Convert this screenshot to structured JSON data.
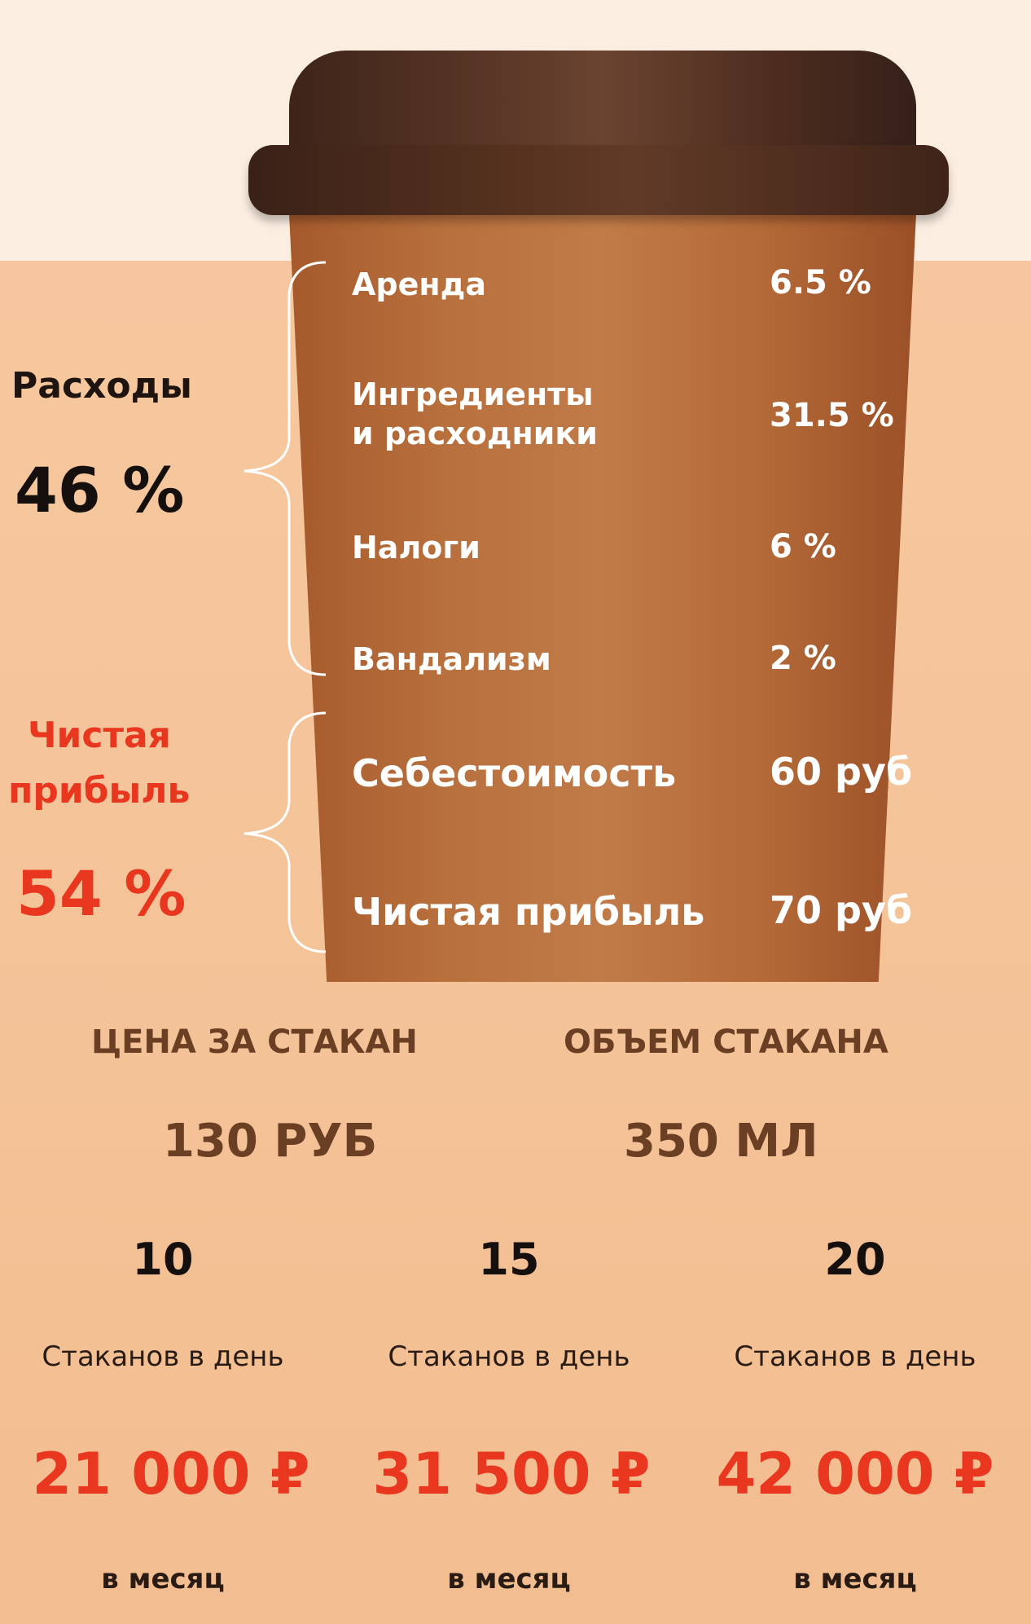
{
  "left": {
    "expenses_label": "Расходы",
    "expenses_percent": "46 %",
    "profit_label_line1": "Чистая",
    "profit_label_line2": "прибыль",
    "profit_percent": "54 %"
  },
  "expense_items": [
    {
      "label": "Аренда",
      "value": "6.5 %"
    },
    {
      "label_line1": "Ингредиенты",
      "label_line2": "и расходники",
      "value": "31.5 %"
    },
    {
      "label": "Налоги",
      "value": "6 %"
    },
    {
      "label": "Вандализм",
      "value": "2 %"
    }
  ],
  "profit_items": [
    {
      "label": "Себестоимость",
      "value": "60 руб"
    },
    {
      "label": "Чистая прибыль",
      "value": "70 руб"
    }
  ],
  "cup_info": {
    "price_label": "ЦЕНА ЗА СТАКАН",
    "price_value": "130 РУБ",
    "volume_label": "ОБЪЕМ СТАКАНА",
    "volume_value": "350 МЛ"
  },
  "scenarios": [
    {
      "count": "10",
      "unit": "Стаканов в день",
      "income": "21 000 ₽",
      "period": "в месяц"
    },
    {
      "count": "15",
      "unit": "Стаканов в день",
      "income": "31 500 ₽",
      "period": "в месяц"
    },
    {
      "count": "20",
      "unit": "Стаканов в день",
      "income": "42 000 ₽",
      "period": "в месяц"
    }
  ],
  "colors": {
    "accent_red": "#e8361f",
    "brown_text": "#6b3f24",
    "cup": "#b8703d",
    "lid": "#4a2b1e"
  }
}
